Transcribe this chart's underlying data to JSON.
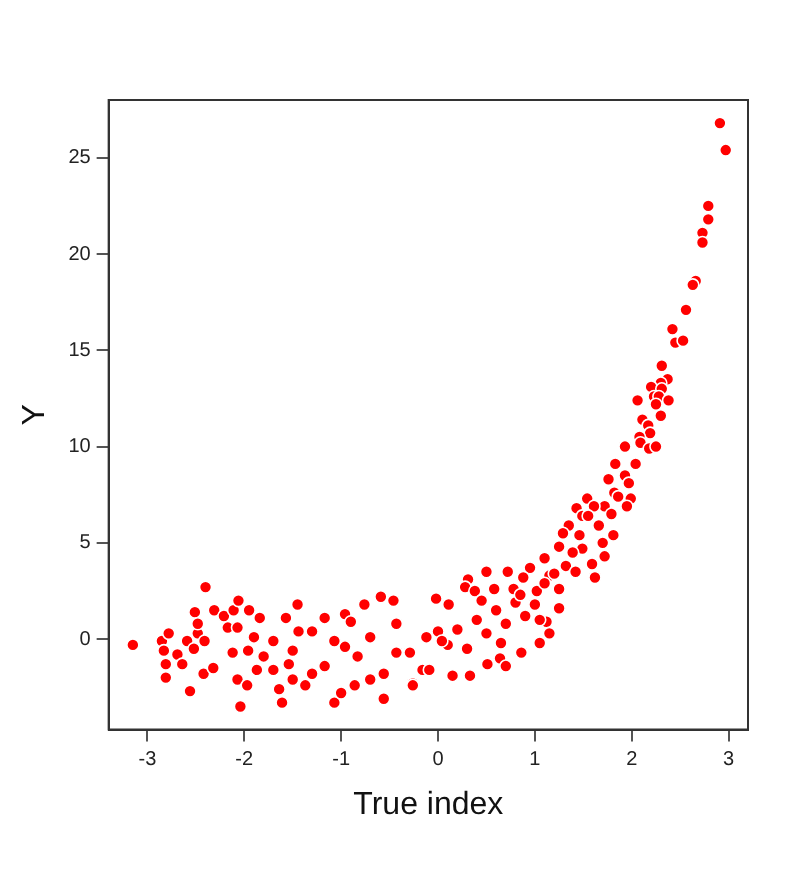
{
  "chart_data": {
    "type": "scatter",
    "xlabel": "True index",
    "ylabel": "Y",
    "xlim": [
      -3.4,
      3.2
    ],
    "ylim": [
      -4.7,
      28
    ],
    "xticks": [
      -3,
      -2,
      -1,
      0,
      1,
      2,
      3
    ],
    "yticks": [
      0,
      5,
      10,
      15,
      20,
      25
    ],
    "grid": false,
    "legend": false,
    "marker": "circle",
    "series": [
      {
        "color": "#ff0000",
        "x": [
          2.91,
          2.97,
          2.79,
          2.79,
          2.73,
          2.73,
          2.66,
          2.63,
          2.56,
          2.42,
          2.45,
          2.53,
          2.31,
          2.37,
          2.3,
          2.2,
          2.31,
          2.23,
          2.28,
          2.06,
          2.38,
          2.25,
          2.3,
          2.11,
          2.17,
          2.19,
          2.08,
          2.09,
          1.93,
          2.18,
          2.25,
          1.83,
          2.04,
          1.93,
          1.76,
          1.97,
          1.82,
          1.86,
          1.99,
          1.54,
          1.72,
          1.43,
          1.95,
          1.61,
          1.79,
          1.49,
          1.55,
          1.35,
          1.66,
          1.29,
          1.46,
          1.81,
          1.7,
          1.25,
          1.49,
          1.39,
          1.72,
          1.1,
          1.59,
          1.32,
          1.62,
          1.42,
          0.95,
          0.88,
          1.15,
          0.72,
          0.5,
          0.31,
          0.28,
          1.25,
          0.58,
          0.78,
          1.02,
          0.38,
          -0.02,
          0.11,
          1.25,
          1.12,
          1.15,
          1.05,
          0.86,
          0.64,
          0.7,
          0.33,
          0.15,
          0.51,
          -0.16,
          -0.26,
          0.2,
          0.4,
          0.6,
          0.8,
          0.3,
          0.5,
          0.7,
          0.9,
          1.0,
          0.1,
          0.0,
          0.45,
          0.65,
          0.85,
          1.1,
          1.2,
          1.05,
          -3.15,
          -2.85,
          -2.78,
          -2.83,
          -2.81,
          -2.81,
          -2.69,
          -2.64,
          -2.56,
          -2.59,
          -2.52,
          -2.51,
          -2.48,
          -2.48,
          -2.4,
          -2.41,
          -2.42,
          -2.32,
          -2.31,
          -2.21,
          -2.11,
          -2.06,
          -2.17,
          -2.07,
          -2.12,
          -2.07,
          -2.04,
          -1.97,
          -1.95,
          -1.96,
          -1.84,
          -1.87,
          -1.61,
          -1.64,
          -1.57,
          -1.45,
          -1.5,
          -1.37,
          -1.17,
          -1.07,
          -0.96,
          -1.0,
          -0.86,
          -0.76,
          -0.59,
          -0.56,
          -0.46,
          -0.26,
          -1.7,
          -1.5,
          -1.3,
          -1.8,
          -1.17,
          -0.83,
          -0.7,
          -0.43,
          -0.29,
          -0.12,
          -0.09,
          -1.7,
          -1.44,
          -1.07,
          -0.56,
          -0.9,
          -1.3,
          -0.7,
          -0.43,
          -0.96,
          -1.9,
          -1.54,
          0.04
        ],
        "values": [
          26.8,
          25.4,
          22.5,
          21.8,
          21.1,
          20.6,
          18.6,
          18.4,
          17.1,
          16.1,
          15.4,
          15.5,
          14.2,
          13.5,
          13.3,
          13.1,
          13.0,
          12.6,
          12.6,
          12.4,
          12.4,
          12.2,
          11.6,
          11.4,
          11.1,
          10.7,
          10.5,
          10.2,
          10.0,
          9.9,
          10.0,
          9.1,
          9.1,
          8.5,
          8.3,
          8.1,
          7.6,
          7.4,
          7.3,
          7.3,
          6.9,
          6.8,
          6.9,
          6.9,
          6.5,
          6.4,
          6.4,
          5.9,
          5.9,
          5.5,
          5.4,
          5.4,
          5.0,
          4.8,
          4.7,
          4.5,
          4.3,
          4.2,
          3.9,
          3.8,
          3.2,
          3.5,
          3.7,
          3.2,
          3.3,
          3.5,
          3.5,
          3.1,
          2.7,
          2.6,
          2.6,
          2.6,
          2.5,
          2.5,
          2.1,
          1.8,
          1.6,
          0.9,
          0.3,
          -0.2,
          -0.7,
          -1.0,
          -1.4,
          -1.9,
          -1.9,
          -1.3,
          -1.6,
          -2.3,
          0.5,
          1.0,
          1.5,
          1.9,
          -0.5,
          0.3,
          0.8,
          1.2,
          1.8,
          -0.3,
          0.4,
          2.0,
          -0.2,
          2.3,
          2.9,
          3.4,
          1.0,
          -0.3,
          -0.1,
          0.3,
          -0.6,
          -1.3,
          -2.0,
          -0.8,
          -1.3,
          -2.7,
          -0.1,
          -0.5,
          1.4,
          0.3,
          0.8,
          2.7,
          -0.1,
          -1.8,
          -1.5,
          1.5,
          1.2,
          1.5,
          2.0,
          0.6,
          0.6,
          -0.7,
          -2.1,
          -3.5,
          -2.4,
          1.5,
          -0.6,
          1.1,
          -1.6,
          -3.3,
          -2.6,
          1.1,
          1.8,
          -2.1,
          -2.4,
          1.1,
          -3.3,
          1.3,
          -2.8,
          -2.4,
          1.8,
          2.2,
          -3.1,
          2.0,
          -2.4,
          -0.1,
          -0.6,
          0.4,
          -0.9,
          -1.4,
          -0.9,
          0.1,
          0.8,
          -0.7,
          0.1,
          -1.6,
          -1.6,
          0.4,
          -0.1,
          -1.8,
          0.9,
          -1.8,
          -2.1,
          -0.7,
          -0.4,
          0.1,
          -1.3,
          -0.1
        ]
      }
    ]
  }
}
